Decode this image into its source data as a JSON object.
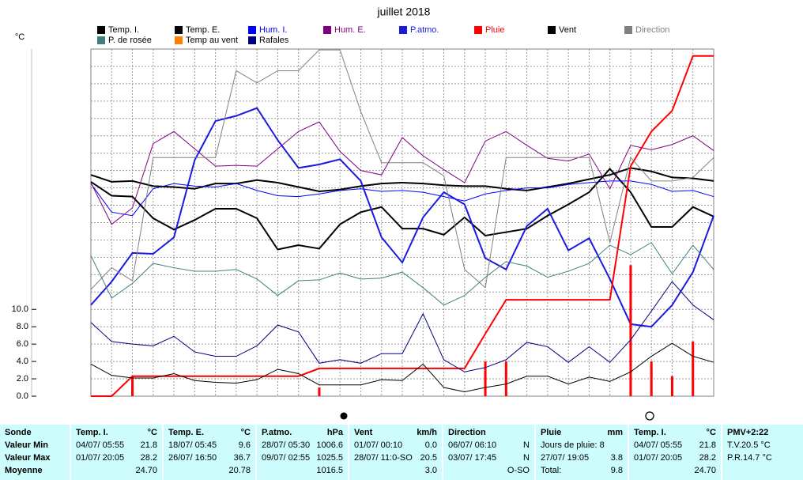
{
  "chart_data": {
    "type": "line",
    "title": "juillet 2018",
    "y_label": "°C",
    "ylim": [
      0,
      40
    ],
    "yticks": [
      {
        "value": 0,
        "label": "0.0"
      },
      {
        "value": 2,
        "label": "2.0"
      },
      {
        "value": 4,
        "label": "4.0"
      },
      {
        "value": 6,
        "label": "6.0"
      },
      {
        "value": 8,
        "label": "8.0"
      },
      {
        "value": 10,
        "label": "10.0"
      }
    ],
    "grid": true,
    "grid_step": 2,
    "series": [
      {
        "name": "Temp. I.",
        "color": "#000000",
        "line_width": 2,
        "values": [
          25.5,
          24.7,
          24.8,
          24.2,
          24.1,
          23.9,
          24.5,
          24.5,
          24.9,
          24.6,
          24.1,
          23.6,
          23.8,
          24.2,
          24.5,
          24.6,
          24.5,
          24.3,
          24.2,
          24.2,
          23.9,
          23.7,
          24.1,
          24.5,
          25.0,
          25.5,
          26.3,
          25.9,
          25.2,
          25.1,
          24.8
        ]
      },
      {
        "name": "Temp. E.",
        "color": "#000000",
        "line_width": 2,
        "values": [
          24.7,
          23.1,
          23.0,
          20.5,
          19.2,
          20.3,
          21.6,
          21.6,
          20.5,
          16.9,
          17.4,
          17.0,
          19.8,
          21.2,
          21.8,
          19.3,
          19.3,
          18.6,
          20.6,
          18.5,
          18.9,
          19.3,
          20.8,
          22.1,
          23.5,
          26.2,
          23.5,
          19.5,
          19.5,
          21.8,
          20.7
        ]
      },
      {
        "name": "Hum. I.",
        "color": "#0000ff",
        "line_width": 1,
        "values": [
          24.5,
          21.2,
          20.8,
          23.9,
          24.5,
          24.2,
          24.1,
          24.5,
          23.7,
          23.1,
          23.0,
          23.3,
          23.7,
          23.9,
          23.6,
          23.7,
          23.5,
          23.0,
          22.5,
          23.3,
          23.7,
          24.0,
          24.0,
          24.4,
          24.6,
          24.8,
          24.8,
          24.4,
          23.6,
          23.7,
          23.0
        ]
      },
      {
        "name": "Hum. E.",
        "color": "#800080",
        "line_width": 1,
        "values": [
          24.6,
          19.8,
          21.7,
          29.1,
          30.5,
          28.5,
          26.5,
          26.6,
          26.5,
          28.5,
          30.5,
          31.6,
          28.2,
          26.0,
          25.5,
          29.8,
          27.7,
          26.1,
          24.6,
          29.4,
          30.5,
          28.9,
          27.4,
          27.1,
          27.9,
          23.9,
          28.9,
          28.4,
          29.0,
          30.0,
          28.3
        ]
      },
      {
        "name": "P.atmo.",
        "color": "#1a1ae0",
        "line_width": 2,
        "values": [
          10.5,
          13.2,
          16.5,
          16.4,
          18.3,
          27.2,
          31.7,
          32.3,
          33.2,
          29.5,
          26.3,
          26.7,
          27.3,
          24.8,
          18.3,
          15.4,
          20.6,
          23.5,
          22.1,
          15.9,
          14.6,
          19.6,
          21.6,
          16.8,
          18.2,
          13.5,
          8.3,
          8.0,
          10.5,
          14.3,
          20.8
        ]
      },
      {
        "name": "Pluie",
        "color": "#ff0000",
        "line_width": 2,
        "values": [
          0,
          0,
          2.3,
          2.3,
          2.3,
          2.3,
          2.3,
          2.3,
          2.3,
          2.3,
          2.3,
          3.2,
          3.2,
          3.2,
          3.2,
          3.2,
          3.2,
          3.2,
          3.2,
          7.2,
          11.1,
          11.1,
          11.1,
          11.1,
          11.1,
          11.1,
          26.5,
          30.5,
          32.9,
          39.2,
          39.2
        ],
        "daily_values": [
          null,
          null,
          2.3,
          null,
          null,
          null,
          null,
          null,
          null,
          null,
          null,
          1.0,
          null,
          null,
          null,
          null,
          null,
          null,
          null,
          4.0,
          4.0,
          null,
          null,
          null,
          null,
          null,
          15.1,
          4.0,
          2.3,
          6.3,
          null
        ]
      },
      {
        "name": "Vent",
        "color": "#000000",
        "line_width": 1,
        "values": [
          3.7,
          2.4,
          2.1,
          2.1,
          2.6,
          1.8,
          1.6,
          1.5,
          1.9,
          3.1,
          2.6,
          1.3,
          1.3,
          1.3,
          1.9,
          1.8,
          3.7,
          1.0,
          0.5,
          1.0,
          1.4,
          2.3,
          2.3,
          1.4,
          2.2,
          1.7,
          2.8,
          4.6,
          6.1,
          4.6,
          3.9
        ]
      },
      {
        "name": "Direction",
        "color": "#808080",
        "line_width": 1,
        "values": [
          12.3,
          14.8,
          13.3,
          27.5,
          27.5,
          27.5,
          27.5,
          37.5,
          36.1,
          37.5,
          37.5,
          39.9,
          39.9,
          32.8,
          26.9,
          26.9,
          26.9,
          25.4,
          14.6,
          12.5,
          27.5,
          27.5,
          27.5,
          27.5,
          27.5,
          17.7,
          27.5,
          24.8,
          24.8,
          25.2,
          27.5
        ]
      },
      {
        "name": "P. de rosée",
        "color": "#408080",
        "line_width": 1,
        "values": [
          16.2,
          11.3,
          13.0,
          15.3,
          14.8,
          14.4,
          14.4,
          14.6,
          13.5,
          11.6,
          13.3,
          13.4,
          14.2,
          13.5,
          13.6,
          14.3,
          12.5,
          10.5,
          11.6,
          13.7,
          15.5,
          15.0,
          13.7,
          14.4,
          15.3,
          17.4,
          16.3,
          17.7,
          14.1,
          17.4,
          14.6
        ]
      },
      {
        "name": "Temp au vent",
        "color": "#ff8000",
        "line_width": 1
      },
      {
        "name": "Rafales",
        "color": "#000080",
        "line_width": 1,
        "values": [
          8.5,
          6.3,
          6.0,
          5.8,
          6.9,
          5.1,
          4.6,
          4.6,
          5.8,
          8.2,
          7.4,
          3.8,
          4.2,
          3.8,
          4.9,
          4.9,
          9.5,
          4.2,
          2.8,
          3.3,
          4.2,
          6.2,
          5.7,
          3.9,
          5.7,
          3.9,
          6.5,
          9.8,
          13.2,
          10.5,
          8.8
        ]
      }
    ]
  },
  "table": {
    "panels": [
      {
        "rows": [
          {
            "l": "Sonde"
          },
          {
            "l": "Valeur Min"
          },
          {
            "l": "Valeur Max"
          },
          {
            "l": "Moyenne"
          }
        ]
      },
      {
        "rows": [
          {
            "l": "Temp. I.",
            "r": "°C"
          },
          {
            "l": "04/07/ 05:55",
            "r": "21.8"
          },
          {
            "l": "01/07/ 20:05",
            "r": "28.2"
          },
          {
            "r": "24.70"
          }
        ]
      },
      {
        "rows": [
          {
            "l": "Temp. E.",
            "r": "°C"
          },
          {
            "l": "18/07/ 05:45",
            "r": "9.6"
          },
          {
            "l": "26/07/ 16:50",
            "r": "36.7"
          },
          {
            "r": "20.78"
          }
        ]
      },
      {
        "rows": [
          {
            "l": "P.atmo.",
            "r": "hPa"
          },
          {
            "l": "28/07/ 05:30",
            "r": "1006.6"
          },
          {
            "l": "09/07/ 02:55",
            "r": "1025.5"
          },
          {
            "r": "1016.5"
          }
        ]
      },
      {
        "rows": [
          {
            "l": "Vent",
            "r": "km/h"
          },
          {
            "l": "01/07/ 00:10",
            "r": "0.0"
          },
          {
            "l": "28/07/ 11:0-SO",
            "r": "20.5"
          },
          {
            "r": "3.0"
          }
        ]
      },
      {
        "rows": [
          {
            "l": "Direction"
          },
          {
            "l": "06/07/ 06:10",
            "r": "N"
          },
          {
            "l": "03/07/ 17:45",
            "r": "N"
          },
          {
            "r": "O-SO"
          }
        ]
      },
      {
        "rows": [
          {
            "l": "Pluie",
            "r": "mm"
          },
          {
            "l": "Jours de pluie: 8"
          },
          {
            "l": "27/07/ 19:05",
            "r": "3.8"
          },
          {
            "l": "Total:",
            "r": "9.8"
          }
        ]
      },
      {
        "rows": [
          {
            "l": "Temp. I.",
            "r": "°C"
          },
          {
            "l": "04/07/ 05:55",
            "r": "21.8"
          },
          {
            "l": "01/07/ 20:05",
            "r": "28.2"
          },
          {
            "r": "24.70"
          }
        ]
      },
      {
        "rows": [
          {
            "l": "PMV+2:22"
          },
          {
            "l": "T.V.20.5 °C"
          },
          {
            "l": "P.R.14.7 °C"
          }
        ]
      }
    ]
  }
}
